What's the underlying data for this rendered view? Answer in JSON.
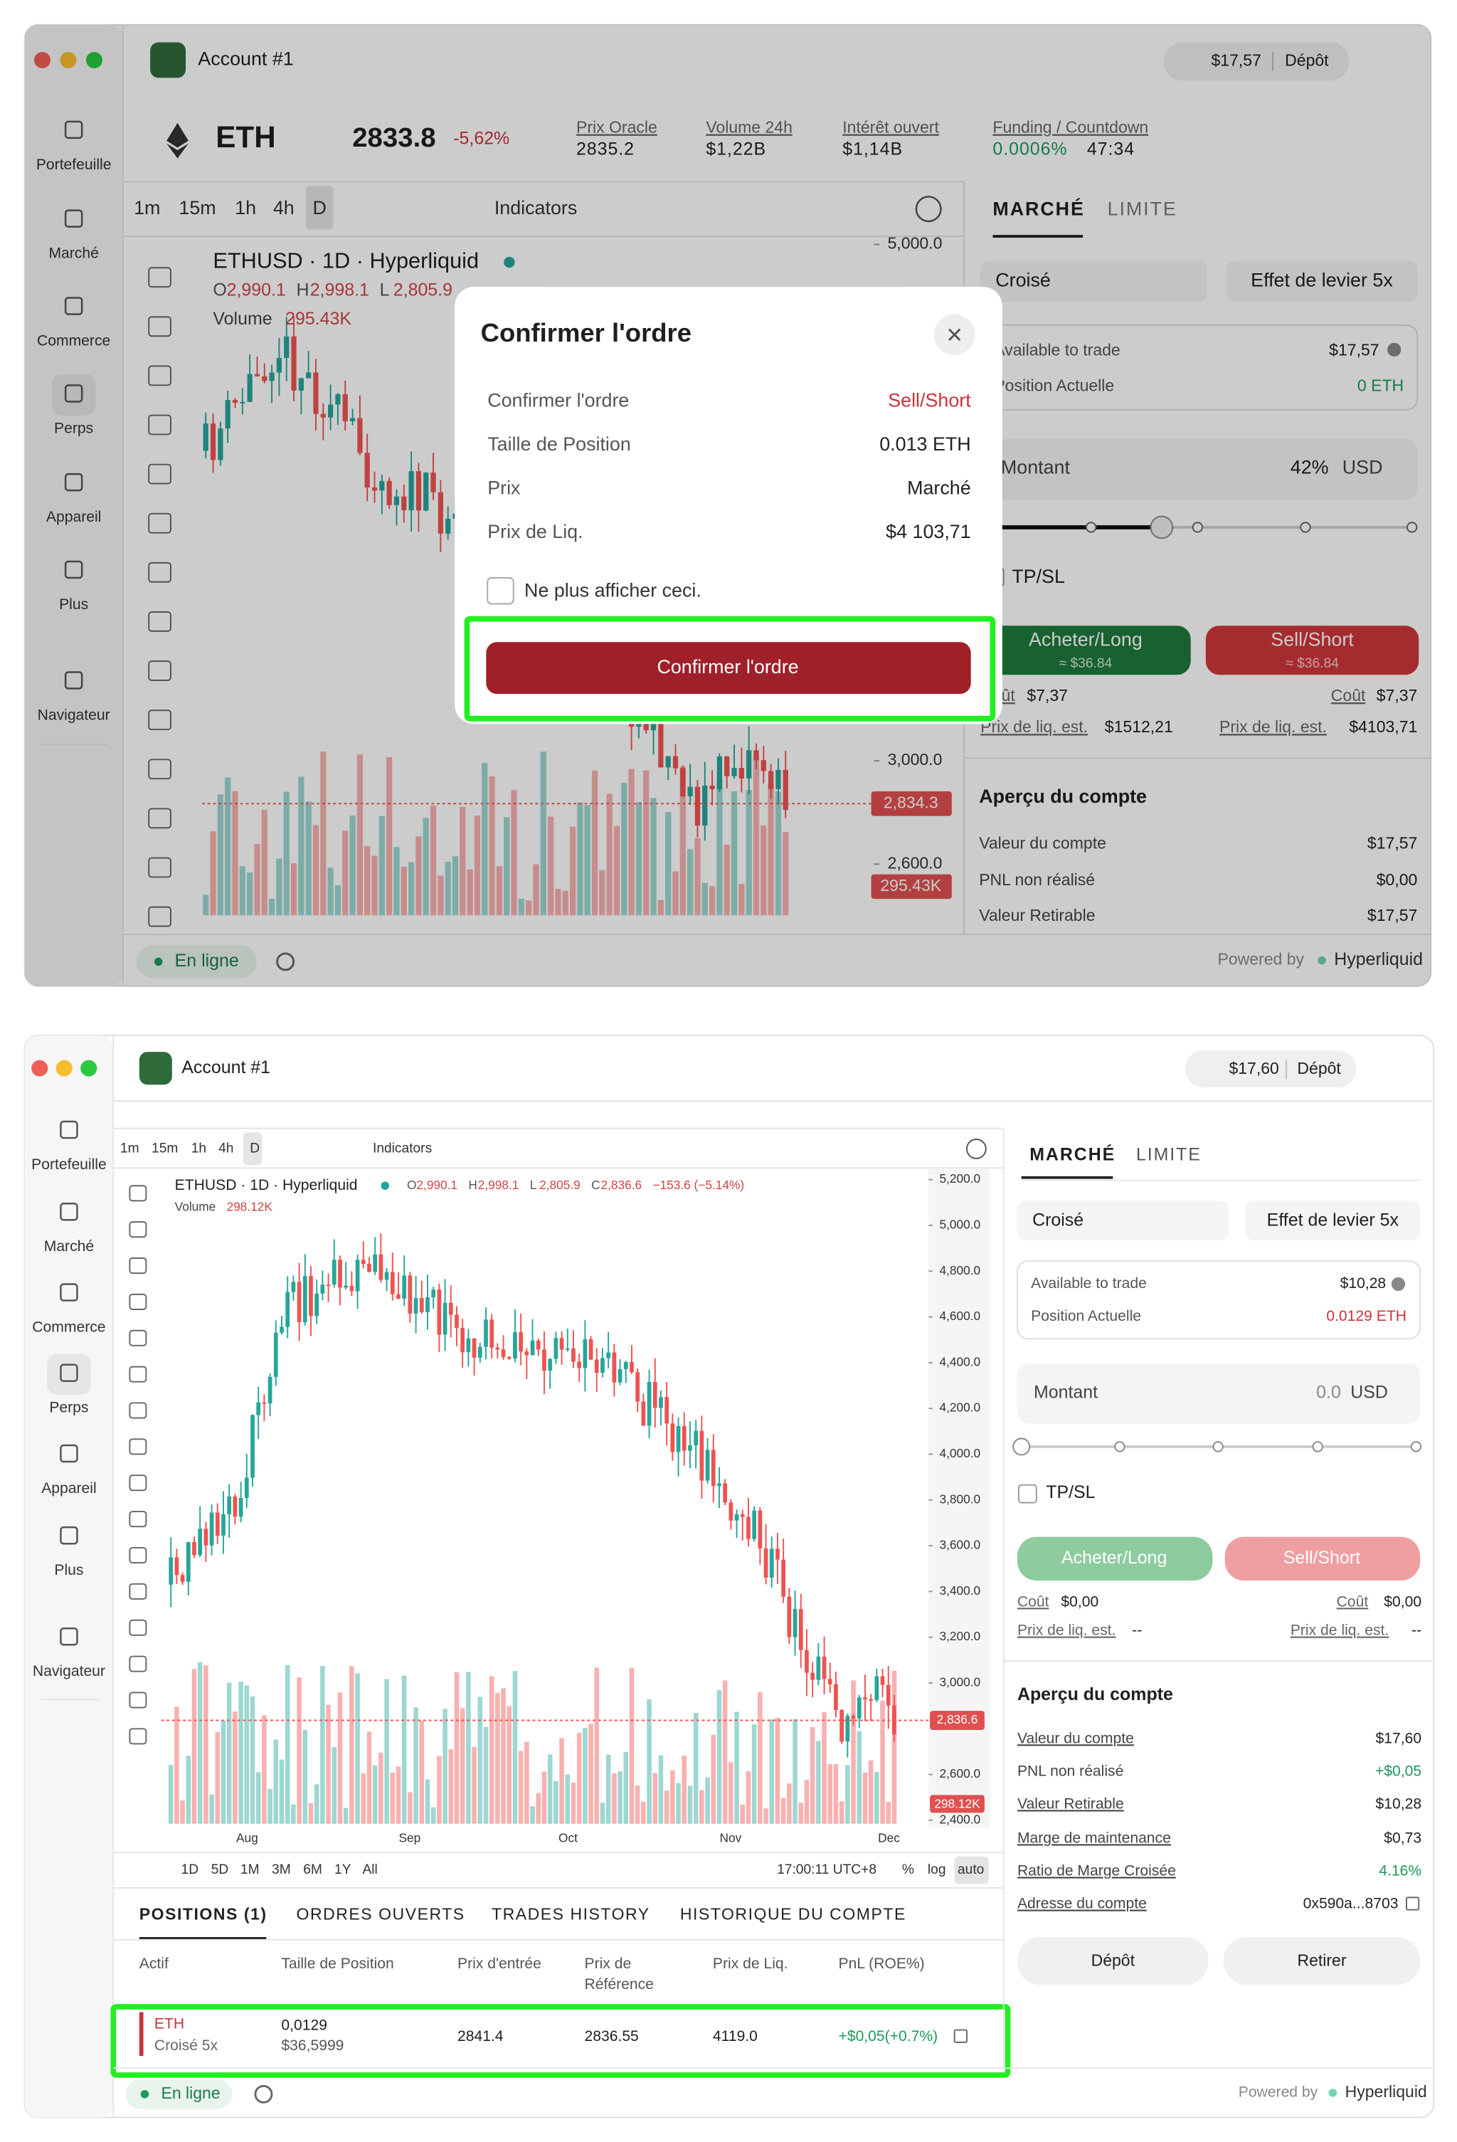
{
  "top": {
    "account": "Account #1",
    "balance": "$17,57",
    "deposit": "Dépôt",
    "nav": [
      "Portefeuille",
      "Marché",
      "Commerce",
      "Perps",
      "Appareil",
      "Plus",
      "Navigateur"
    ],
    "ticker": {
      "symbol": "ETH",
      "price": "2833.8",
      "change": "-5,62%",
      "stats": [
        {
          "label": "Prix Oracle",
          "value": "2835.2"
        },
        {
          "label": "Volume 24h",
          "value": "$1,22B"
        },
        {
          "label": "Intérêt ouvert",
          "value": "$1,14B"
        },
        {
          "label": "Funding / Countdown",
          "value": "0.0006%",
          "countdown": "47:34"
        }
      ]
    },
    "intervals": [
      "1m",
      "15m",
      "1h",
      "4h",
      "D"
    ],
    "indicators": "Indicators",
    "chart_data": {
      "type": "candlestick",
      "title": "ETHUSD · 1D · Hyperliquid",
      "ohlc": [
        {
          "key": "O",
          "value": "2,990.1"
        },
        {
          "key": "H",
          "value": "2,998.1"
        },
        {
          "key": "L",
          "value": "2,805.9"
        }
      ],
      "volume_label": "Volume",
      "volume": "295.43K",
      "ylim": [
        2349,
        5021
      ],
      "yticks": [
        {
          "value": 5000,
          "label": "5,000.0"
        },
        {
          "value": 3000,
          "label": "3,000.0"
        },
        {
          "value": 2600,
          "label": "2,600.0"
        }
      ],
      "last_price": {
        "value": 2834.3,
        "label": "2,834.3"
      }
    },
    "order": {
      "tabs": [
        "MARCHÉ",
        "LIMITE"
      ],
      "margin_mode": "Croisé",
      "leverage": "Effet de levier 5x",
      "available_label": "Available to trade",
      "available": "$17,57",
      "position_label": "Position Actuelle",
      "position": "0 ETH",
      "amount_label": "Montant",
      "amount": {
        "value": 42,
        "label": "42%"
      },
      "unit": "USD",
      "tpsl": "TP/SL",
      "buy": "Acheter/Long",
      "buy_sub": "≈ $36.84",
      "sell": "Sell/Short",
      "sell_sub": "≈ $36.84",
      "cost_label": "Coût",
      "buy_cost": "$7,37",
      "sell_cost": "$7,37",
      "liq_label": "Prix de liq. est.",
      "buy_liq": "$1512,21",
      "sell_liq": "$4103,71"
    },
    "overview": {
      "title": "Aperçu du compte",
      "rows": [
        {
          "label": "Valeur du compte",
          "value": "$17,57"
        },
        {
          "label": "PNL non réalisé",
          "value": "$0,00"
        },
        {
          "label": "Valeur Retirable",
          "value": "$17,57"
        }
      ]
    },
    "status": "En ligne",
    "powered_by": "Powered by",
    "brand": "Hyperliquid",
    "modal": {
      "title": "Confirmer l'ordre",
      "rows": [
        {
          "label": "Confirmer l'ordre",
          "value": "Sell/Short"
        },
        {
          "label": "Taille de Position",
          "value": "0.013 ETH"
        },
        {
          "label": "Prix",
          "value": "Marché"
        },
        {
          "label": "Prix de Liq.",
          "value": "$4 103,71"
        }
      ],
      "checkbox": "Ne plus afficher ceci.",
      "button": "Confirmer l'ordre"
    }
  },
  "bottom": {
    "account": "Account #1",
    "balance": "$17,60",
    "deposit": "Dépôt",
    "nav": [
      "Portefeuille",
      "Marché",
      "Commerce",
      "Perps",
      "Appareil",
      "Plus",
      "Navigateur"
    ],
    "intervals": [
      "1m",
      "15m",
      "1h",
      "4h",
      "D"
    ],
    "indicators": "Indicators",
    "chart_data": {
      "type": "candlestick",
      "title": "ETHUSD · 1D · Hyperliquid",
      "ohlc": [
        {
          "key": "O",
          "value": "2,990.1"
        },
        {
          "key": "H",
          "value": "2,998.1"
        },
        {
          "key": "L",
          "value": "2,805.9"
        },
        {
          "key": "C",
          "value": "2,836.6"
        }
      ],
      "change": "−153.6 (−5.14%)",
      "volume_label": "Volume",
      "volume": "298.12K",
      "categories": [
        "Aug",
        "Sep",
        "Oct",
        "Nov",
        "Dec"
      ],
      "ylim": [
        2367,
        5233
      ],
      "yticks": [
        {
          "value": 5200,
          "label": "5,200.0"
        },
        {
          "value": 5000,
          "label": "5,000.0"
        },
        {
          "value": 4800,
          "label": "4,800.0"
        },
        {
          "value": 4600,
          "label": "4,600.0"
        },
        {
          "value": 4400,
          "label": "4,400.0"
        },
        {
          "value": 4200,
          "label": "4,200.0"
        },
        {
          "value": 4000,
          "label": "4,000.0"
        },
        {
          "value": 3800,
          "label": "3,800.0"
        },
        {
          "value": 3600,
          "label": "3,600.0"
        },
        {
          "value": 3400,
          "label": "3,400.0"
        },
        {
          "value": 3200,
          "label": "3,200.0"
        },
        {
          "value": 3000,
          "label": "3,000.0"
        },
        {
          "value": 2600,
          "label": "2,600.0"
        },
        {
          "value": 2400,
          "label": "2,400.0"
        }
      ],
      "last_price": {
        "value": 2836.6,
        "label": "2,836.6"
      }
    },
    "ranges": [
      "1D",
      "5D",
      "1M",
      "3M",
      "6M",
      "1Y",
      "All"
    ],
    "time": "17:00:11 UTC+8",
    "scale_options": [
      "%",
      "log",
      "auto"
    ],
    "tabs": [
      "POSITIONS (1)",
      "ORDRES OUVERTS",
      "TRADES HISTORY",
      "HISTORIQUE DU COMPTE"
    ],
    "table": {
      "headers": [
        [
          "Actif"
        ],
        [
          "Taille de Position"
        ],
        [
          "Prix d'entrée"
        ],
        [
          "Prix de",
          "Référence"
        ],
        [
          "Prix de Liq."
        ],
        [
          "PnL (ROE%)"
        ]
      ],
      "row": {
        "asset": "ETH",
        "mode": "Croisé 5x",
        "size": "0,0129",
        "size_usd": "$36,5999",
        "entry": "2841.4",
        "reference": "2836.55",
        "liquidation": "4119.0",
        "pnl": "+$0,05(+0.7%)"
      }
    },
    "order": {
      "tabs": [
        "MARCHÉ",
        "LIMITE"
      ],
      "margin_mode": "Croisé",
      "leverage": "Effet de levier 5x",
      "available_label": "Available to trade",
      "available": "$10,28",
      "position_label": "Position Actuelle",
      "position": "0.0129 ETH",
      "amount_label": "Montant",
      "amount": {
        "value": 0,
        "label": "0.0"
      },
      "unit": "USD",
      "tpsl": "TP/SL",
      "buy": "Acheter/Long",
      "sell": "Sell/Short",
      "cost_label": "Coût",
      "buy_cost": "$0,00",
      "sell_cost": "$0,00",
      "liq_label": "Prix de liq. est.",
      "buy_liq": "--",
      "sell_liq": "--"
    },
    "overview": {
      "title": "Aperçu du compte",
      "rows": [
        {
          "label": "Valeur du compte",
          "value": "$17,60"
        },
        {
          "label": "PNL non réalisé",
          "value": "+$0,05"
        },
        {
          "label": "Valeur Retirable",
          "value": "$10,28"
        },
        {
          "label": "Marge de maintenance",
          "value": "$0,73"
        },
        {
          "label": "Ratio de Marge Croisée",
          "value": "4.16%"
        },
        {
          "label": "Adresse du compte",
          "value": "0x590a...8703"
        }
      ]
    },
    "deposit_button": "Dépôt",
    "withdraw_button": "Retirer",
    "status": "En ligne",
    "powered_by": "Powered by",
    "brand": "Hyperliquid"
  }
}
